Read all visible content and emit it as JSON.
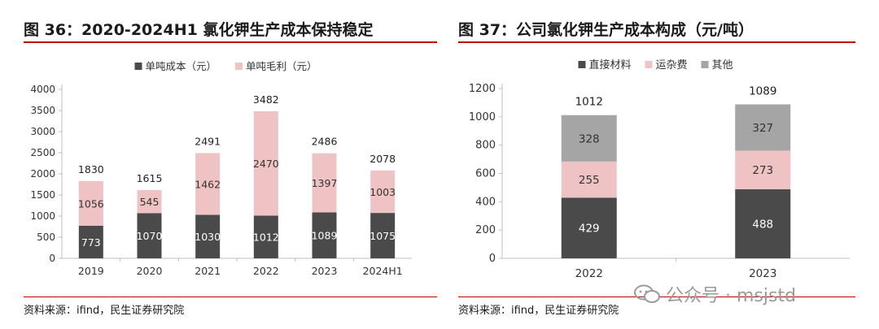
{
  "left": {
    "title": "图 36：2020-2024H1 氯化钾生产成本保持稳定",
    "source": "资料来源：ifind，民生证券研究院"
  },
  "right": {
    "title": "图 37：公司氯化钾生产成本构成（元/吨）",
    "source": "资料来源：ifind，民生证券研究院"
  },
  "watermark": {
    "text": "公众号 · msjstd",
    "icon": "wechat-icon"
  },
  "colors": {
    "dark": "#4a4a4a",
    "pink": "#efc3c3",
    "gray": "#a5a5a5",
    "accent": "#c00000"
  },
  "chart_data": [
    {
      "type": "bar",
      "stacked": true,
      "title": "2020-2024H1 氯化钾生产成本保持稳定",
      "categories": [
        "2019",
        "2020",
        "2021",
        "2022",
        "2023",
        "2024H1"
      ],
      "series": [
        {
          "name": "单吨成本（元）",
          "values": [
            773,
            1070,
            1030,
            1012,
            1089,
            1075
          ]
        },
        {
          "name": "单吨毛利（元）",
          "values": [
            1056,
            545,
            1462,
            2470,
            1397,
            1003
          ]
        }
      ],
      "totals": [
        "1830",
        "1615",
        "2491",
        "3482",
        "2486",
        "2078"
      ],
      "yticks": [
        0,
        500,
        1000,
        1500,
        2000,
        2500,
        3000,
        3500,
        4000
      ],
      "ylim": [
        0,
        4000
      ],
      "legend": "top-center",
      "grid": false
    },
    {
      "type": "bar",
      "stacked": true,
      "title": "公司氯化钾生产成本构成（元/吨）",
      "categories": [
        "2022",
        "2023"
      ],
      "series": [
        {
          "name": "直接材料",
          "values": [
            429,
            488
          ]
        },
        {
          "name": "运杂费",
          "values": [
            255,
            273
          ]
        },
        {
          "name": "其他",
          "values": [
            328,
            327
          ]
        }
      ],
      "totals": [
        "1012",
        "1089"
      ],
      "yticks": [
        0,
        200,
        400,
        600,
        800,
        1000,
        1200
      ],
      "ylim": [
        0,
        1200
      ],
      "legend": "top-center",
      "grid": false
    }
  ]
}
